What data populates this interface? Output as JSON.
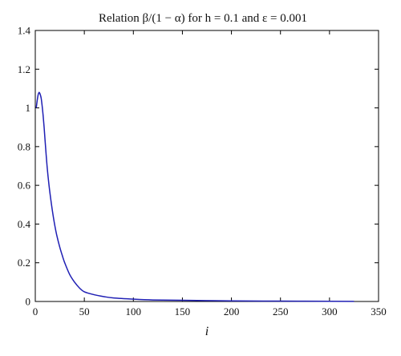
{
  "chart_data": {
    "type": "line",
    "title": "Relation β/(1 − α) for h = 0.1 and ε = 0.001",
    "xlabel": "i",
    "ylabel": "",
    "xlim": [
      0,
      350
    ],
    "ylim": [
      0,
      1.4
    ],
    "x_ticks": [
      0,
      50,
      100,
      150,
      200,
      250,
      300,
      350
    ],
    "y_ticks": [
      0,
      0.2,
      0.4,
      0.6,
      0.8,
      1,
      1.2,
      1.4
    ],
    "x_tick_labels": [
      "0",
      "50",
      "100",
      "150",
      "200",
      "250",
      "300",
      "350"
    ],
    "y_tick_labels": [
      "0",
      "0.2",
      "0.4",
      "0.6",
      "0.8",
      "1",
      "1.2",
      "1.4"
    ],
    "grid": false,
    "legend": "none",
    "line_color": "#1f1fb4",
    "series": [
      {
        "x": [
          1,
          2,
          3,
          4,
          5,
          6,
          7,
          8,
          9,
          10,
          12,
          14,
          16,
          18,
          20,
          22,
          25,
          28,
          30,
          35,
          40,
          45,
          50,
          60,
          70,
          80,
          100,
          120,
          150,
          200,
          250,
          300,
          325
        ],
        "values": [
          1.0,
          1.04,
          1.07,
          1.08,
          1.07,
          1.05,
          1.01,
          0.96,
          0.9,
          0.83,
          0.7,
          0.6,
          0.52,
          0.45,
          0.39,
          0.34,
          0.28,
          0.23,
          0.2,
          0.14,
          0.1,
          0.07,
          0.05,
          0.035,
          0.025,
          0.018,
          0.012,
          0.008,
          0.006,
          0.003,
          0.002,
          0.001,
          0.0005
        ]
      }
    ]
  }
}
